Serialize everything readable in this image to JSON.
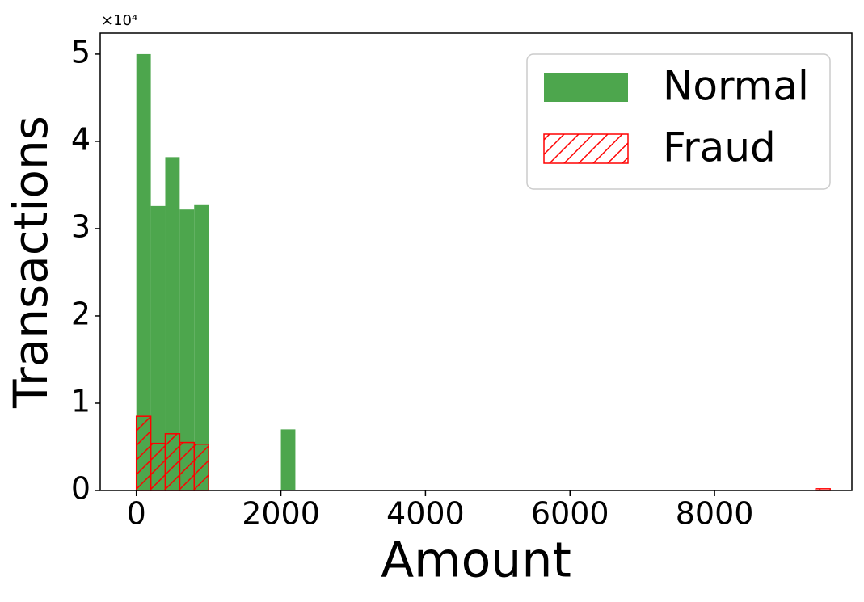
{
  "chart_data": {
    "type": "histogram",
    "xlabel": "Amount",
    "ylabel": "Transactions",
    "y_offset_label": "×10⁴",
    "bins": [
      0,
      200,
      400,
      600,
      800,
      1000,
      1200,
      1400,
      1600,
      1800,
      2000,
      2200,
      2400,
      2600,
      2800,
      3000,
      3200,
      3400,
      3600,
      3800,
      4000,
      4200,
      4400,
      4600,
      4800,
      5000,
      5200,
      5400,
      5600,
      5800,
      6000,
      6200,
      6400,
      6600,
      6800,
      7000,
      7200,
      7400,
      7600,
      7800,
      8000,
      8200,
      8400,
      8600,
      8800,
      9000,
      9200,
      9400,
      9600
    ],
    "series": [
      {
        "name": "Normal",
        "color": "#4da64d",
        "hatch": false,
        "values": [
          50000,
          32600,
          38200,
          32200,
          32700,
          0,
          0,
          0,
          0,
          0,
          7000,
          0,
          0,
          0,
          0,
          0,
          0,
          0,
          0,
          0,
          0,
          0,
          0,
          0,
          0,
          0,
          0,
          0,
          0,
          0,
          0,
          0,
          0,
          0,
          0,
          0,
          0,
          0,
          0,
          0,
          0,
          0,
          0,
          0,
          0,
          0,
          0,
          0
        ]
      },
      {
        "name": "Fraud",
        "color": "#ff0000",
        "hatch": true,
        "values": [
          8500,
          5400,
          6500,
          5500,
          5300,
          0,
          0,
          0,
          0,
          0,
          0,
          0,
          0,
          0,
          0,
          0,
          0,
          0,
          0,
          0,
          0,
          0,
          0,
          0,
          0,
          0,
          0,
          0,
          0,
          0,
          0,
          0,
          0,
          0,
          0,
          0,
          0,
          0,
          0,
          0,
          0,
          0,
          0,
          0,
          0,
          0,
          0,
          200
        ]
      }
    ],
    "xlim": [
      -500,
      9900
    ],
    "ylim": [
      0,
      52400
    ],
    "xticks": [
      0,
      2000,
      4000,
      6000,
      8000
    ],
    "yticks": [
      0,
      {
        "value": 10000,
        "label": "1"
      },
      {
        "value": 20000,
        "label": "2"
      },
      {
        "value": 30000,
        "label": "3"
      },
      {
        "value": 40000,
        "label": "4"
      },
      {
        "value": 50000,
        "label": "5"
      }
    ],
    "legend": "upper right"
  }
}
